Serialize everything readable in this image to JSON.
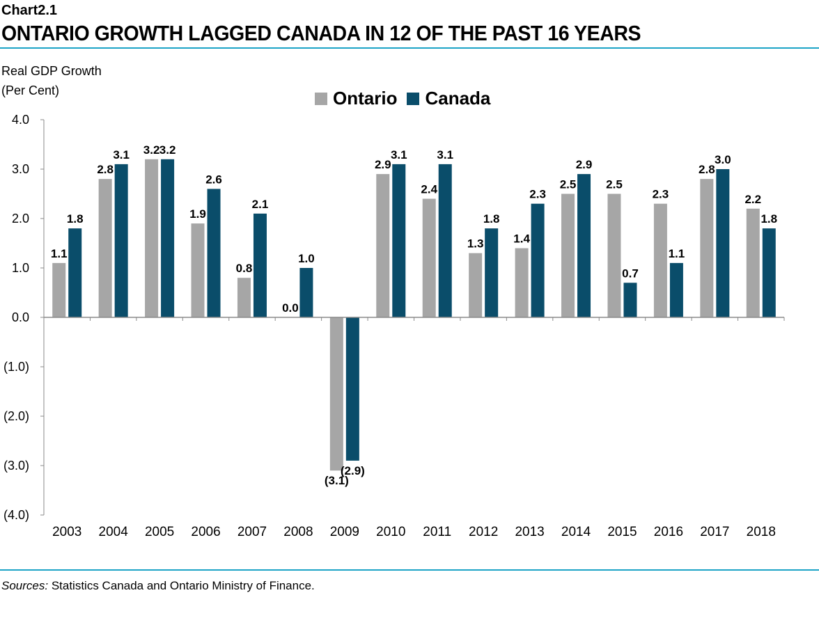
{
  "header": {
    "chart_number": "Chart2.1",
    "title": "ONTARIO GROWTH LAGGED CANADA IN 12 OF THE PAST 16 YEARS"
  },
  "footer": {
    "sources_label": "Sources:",
    "sources_text": " Statistics Canada and Ontario Ministry of Finance."
  },
  "colors": {
    "ontario": "#a6a6a6",
    "canada": "#0a4d6a",
    "rule": "#1ba3c6"
  },
  "chart_data": {
    "type": "bar",
    "ylabel_line1": "Real GDP Growth",
    "ylabel_line2": "(Per Cent)",
    "xlabel": "",
    "ylim": [
      -4.0,
      4.0
    ],
    "yticks": [
      4.0,
      3.0,
      2.0,
      1.0,
      0.0,
      -1.0,
      -2.0,
      -3.0,
      -4.0
    ],
    "ytick_labels": [
      "4.0",
      "3.0",
      "2.0",
      "1.0",
      "0.0",
      "(1.0)",
      "(2.0)",
      "(3.0)",
      "(4.0)"
    ],
    "legend_position": "top-center",
    "categories": [
      "2003",
      "2004",
      "2005",
      "2006",
      "2007",
      "2008",
      "2009",
      "2010",
      "2011",
      "2012",
      "2013",
      "2014",
      "2015",
      "2016",
      "2017",
      "2018"
    ],
    "series": [
      {
        "name": "Ontario",
        "values": [
          1.1,
          2.8,
          3.2,
          1.9,
          0.8,
          0.0,
          -3.1,
          2.9,
          2.4,
          1.3,
          1.4,
          2.5,
          2.5,
          2.3,
          2.8,
          2.2
        ],
        "labels": [
          "1.1",
          "2.8",
          "3.2",
          "1.9",
          "0.8",
          "0.0",
          "(3.1)",
          "2.9",
          "2.4",
          "1.3",
          "1.4",
          "2.5",
          "2.5",
          "2.3",
          "2.8",
          "2.2"
        ]
      },
      {
        "name": "Canada",
        "values": [
          1.8,
          3.1,
          3.2,
          2.6,
          2.1,
          1.0,
          -2.9,
          3.1,
          3.1,
          1.8,
          2.3,
          2.9,
          0.7,
          1.1,
          3.0,
          1.8
        ],
        "labels": [
          "1.8",
          "3.1",
          "3.2",
          "2.6",
          "2.1",
          "1.0",
          "(2.9)",
          "3.1",
          "3.1",
          "1.8",
          "2.3",
          "2.9",
          "0.7",
          "1.1",
          "3.0",
          "1.8"
        ]
      }
    ]
  }
}
